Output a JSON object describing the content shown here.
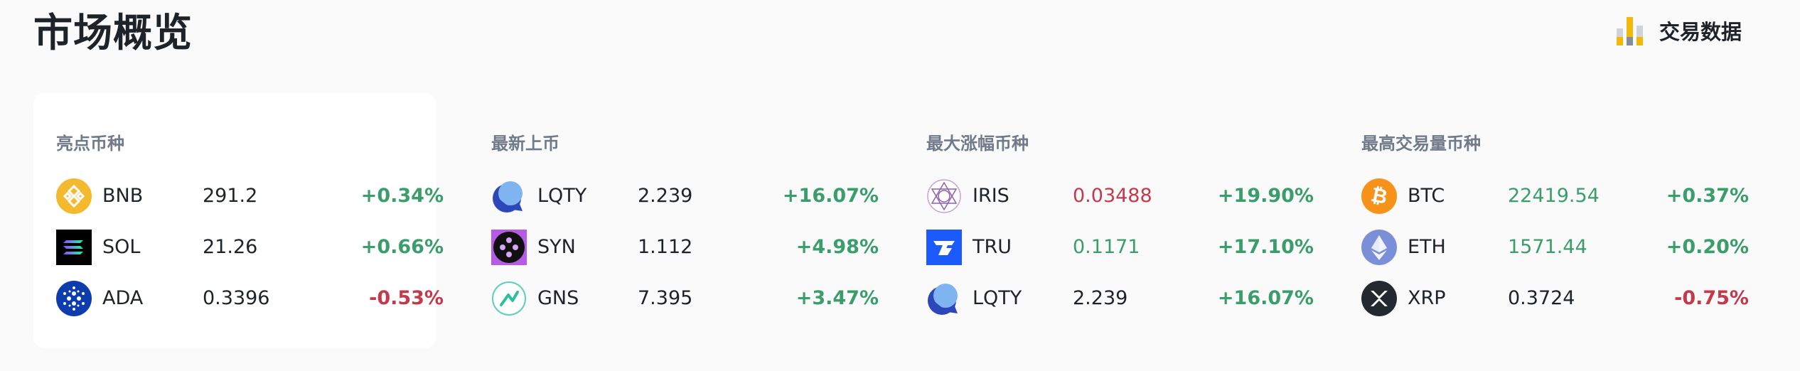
{
  "header": {
    "title": "市场概览",
    "trade_data_label": "交易数据"
  },
  "sections": [
    {
      "title": "亮点币种",
      "items": [
        {
          "symbol": "BNB",
          "price": "291.2",
          "change": "+0.34%",
          "price_color": "neutral",
          "change_dir": "up",
          "icon": "bnb-icon"
        },
        {
          "symbol": "SOL",
          "price": "21.26",
          "change": "+0.66%",
          "price_color": "neutral",
          "change_dir": "up",
          "icon": "sol-icon"
        },
        {
          "symbol": "ADA",
          "price": "0.3396",
          "change": "-0.53%",
          "price_color": "neutral",
          "change_dir": "down",
          "icon": "ada-icon"
        }
      ]
    },
    {
      "title": "最新上币",
      "items": [
        {
          "symbol": "LQTY",
          "price": "2.239",
          "change": "+16.07%",
          "price_color": "neutral",
          "change_dir": "up",
          "icon": "lqty-icon"
        },
        {
          "symbol": "SYN",
          "price": "1.112",
          "change": "+4.98%",
          "price_color": "neutral",
          "change_dir": "up",
          "icon": "syn-icon"
        },
        {
          "symbol": "GNS",
          "price": "7.395",
          "change": "+3.47%",
          "price_color": "neutral",
          "change_dir": "up",
          "icon": "gns-icon"
        }
      ]
    },
    {
      "title": "最大涨幅币种",
      "items": [
        {
          "symbol": "IRIS",
          "price": "0.03488",
          "change": "+19.90%",
          "price_color": "down",
          "change_dir": "up",
          "icon": "iris-icon"
        },
        {
          "symbol": "TRU",
          "price": "0.1171",
          "change": "+17.10%",
          "price_color": "up",
          "change_dir": "up",
          "icon": "tru-icon"
        },
        {
          "symbol": "LQTY",
          "price": "2.239",
          "change": "+16.07%",
          "price_color": "neutral",
          "change_dir": "up",
          "icon": "lqty-icon"
        }
      ]
    },
    {
      "title": "最高交易量币种",
      "items": [
        {
          "symbol": "BTC",
          "price": "22419.54",
          "change": "+0.37%",
          "price_color": "up",
          "change_dir": "up",
          "icon": "btc-icon"
        },
        {
          "symbol": "ETH",
          "price": "1571.44",
          "change": "+0.20%",
          "price_color": "up",
          "change_dir": "up",
          "icon": "eth-icon"
        },
        {
          "symbol": "XRP",
          "price": "0.3724",
          "change": "-0.75%",
          "price_color": "neutral",
          "change_dir": "down",
          "icon": "xrp-icon"
        }
      ]
    }
  ],
  "colors": {
    "up": "#3b9d6b",
    "down": "#c23a4b",
    "text": "#1e2329",
    "muted": "#707a8a",
    "accent": "#f0b90b"
  }
}
